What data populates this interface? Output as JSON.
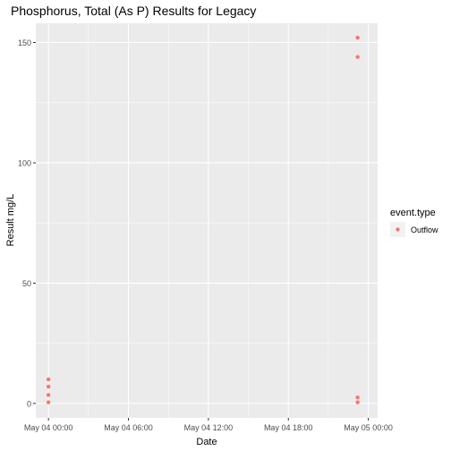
{
  "chart_data": {
    "type": "scatter",
    "title": "Phosphorus, Total (As P) Results for Legacy",
    "xlabel": "Date",
    "ylabel": "Result mg/L",
    "x_ticks": [
      "May 04 00:00",
      "May 04 06:00",
      "May 04 12:00",
      "May 04 18:00",
      "May 05 00:00"
    ],
    "x_tick_hours": [
      0,
      6,
      12,
      18,
      24
    ],
    "xlim_hours": [
      -0.95,
      24.7
    ],
    "y_ticks": [
      0,
      50,
      100,
      150
    ],
    "ylim": [
      -6,
      158
    ],
    "grid": true,
    "legend": {
      "title": "event.type",
      "placement": "right",
      "entries": [
        "Outflow"
      ]
    },
    "colors": {
      "Outflow": "#F8766D",
      "panel": "#EBEBEB",
      "grid": "#ffffff"
    },
    "series": [
      {
        "name": "Outflow",
        "x_hours": [
          0,
          0,
          0,
          0,
          23.2,
          23.2,
          23.2,
          23.2
        ],
        "y": [
          0.5,
          3.5,
          7,
          10,
          0.5,
          2.5,
          144,
          152
        ]
      }
    ]
  }
}
